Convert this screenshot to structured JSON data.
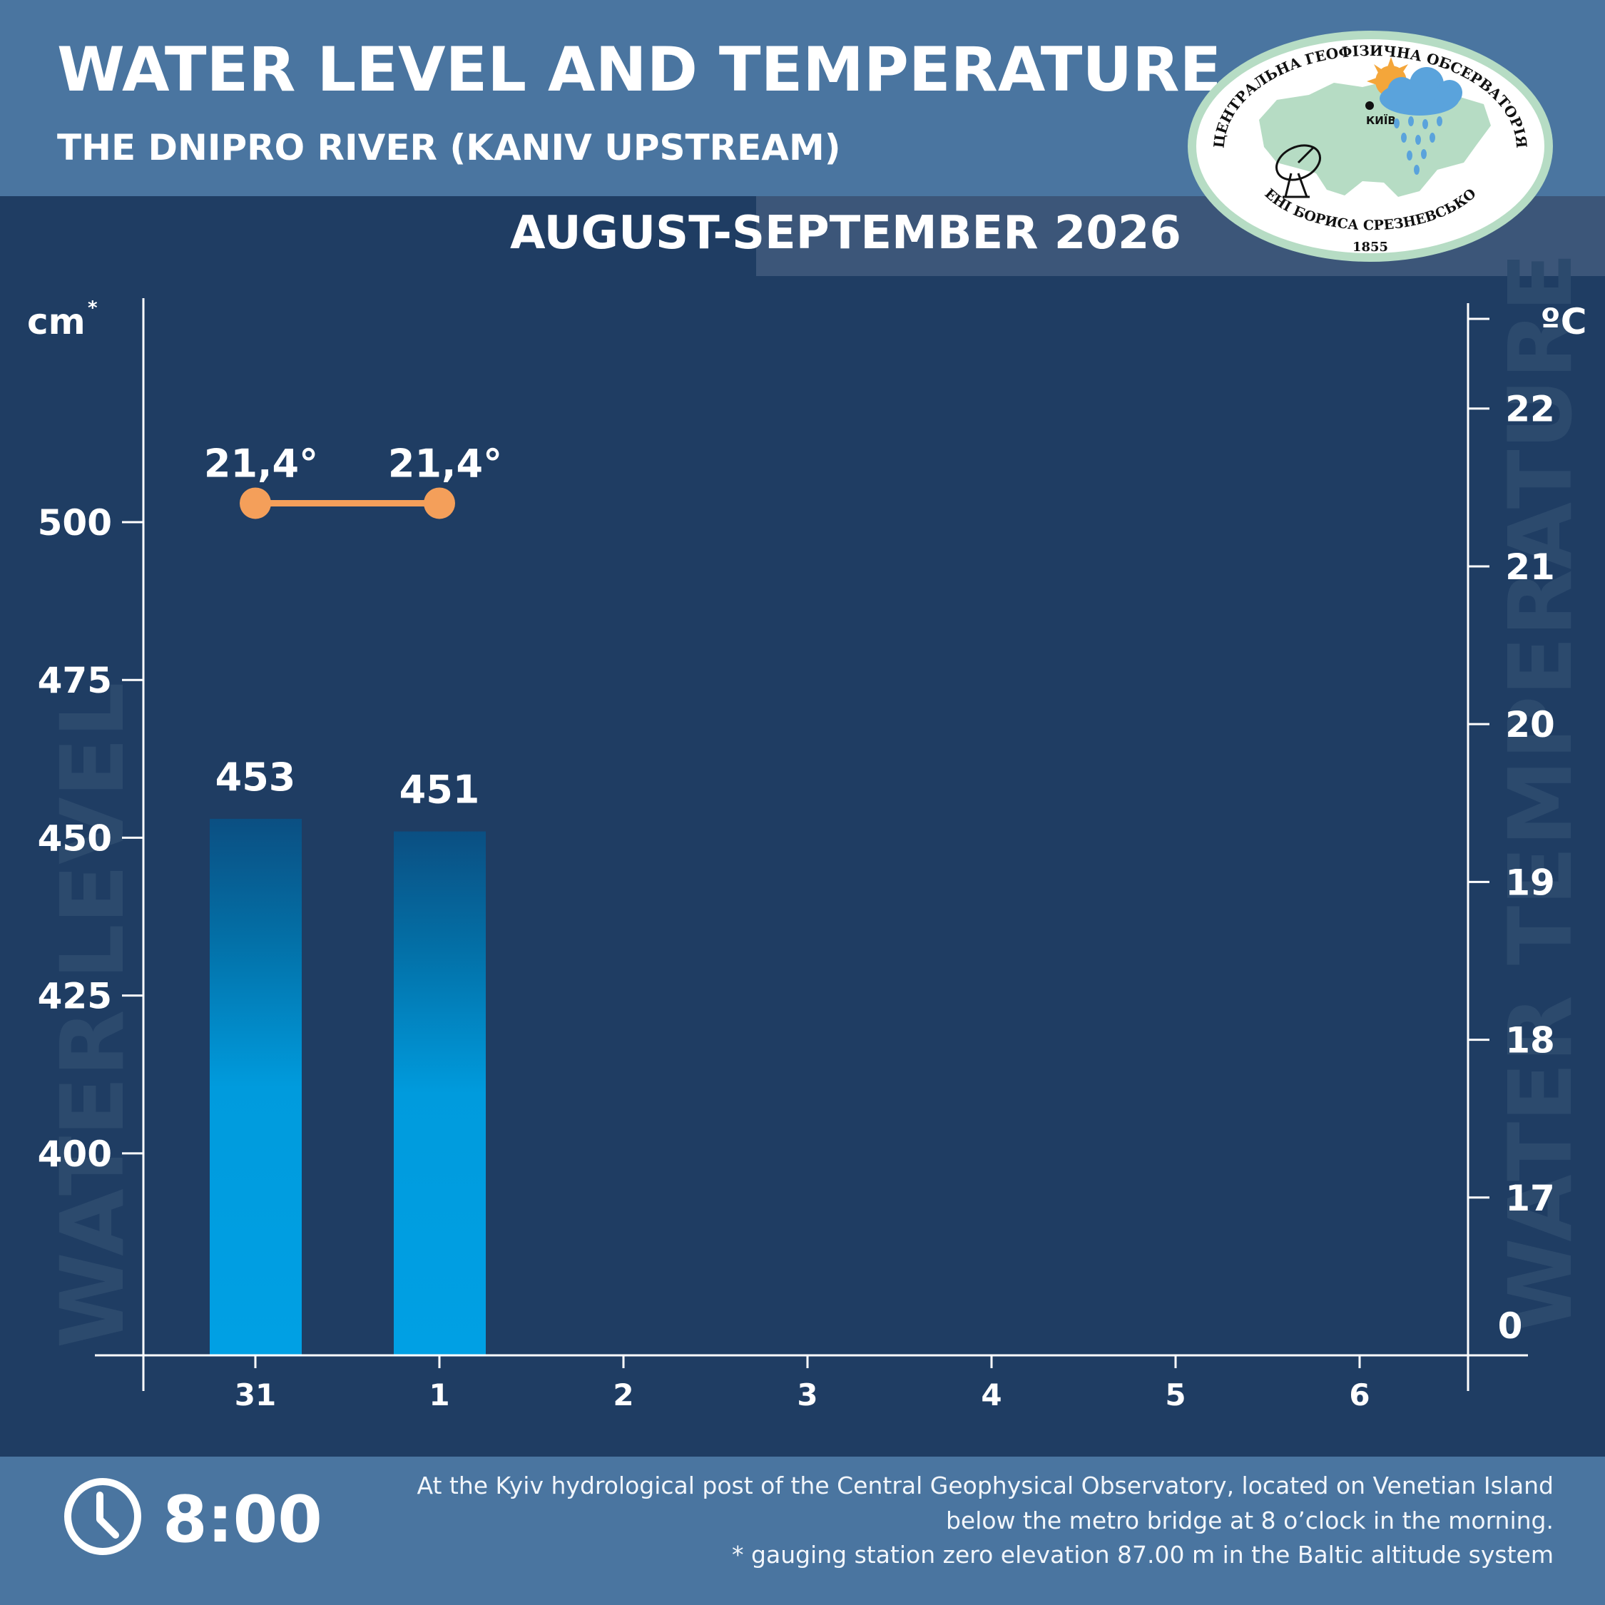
{
  "header": {
    "title": "WATER LEVEL AND TEMPERATURE",
    "subtitle": "THE DNIPRO RIVER (KANIV UPSTREAM)",
    "period": "AUGUST-SEPTEMBER 2026"
  },
  "logo": {
    "top_text": "ЦЕНТРАЛЬНА ГЕОФІЗИЧНА ОБСЕРВАТОРІЯ",
    "bottom_text": "ІМЕНІ БОРИСА СРЕЗНЕВСЬКОГО",
    "year": "1855",
    "city": "КИЇВ",
    "colors": {
      "map": "#b6dcc4",
      "ring": "#b6dcc4",
      "cloud": "#5aa3dc",
      "sun": "#f4a63a"
    },
    "icons": [
      "ukraine-map-icon",
      "sun-icon",
      "rain-cloud-icon",
      "satellite-dish-icon"
    ]
  },
  "footer": {
    "time": "8:00",
    "note_line1": "At the Kyiv hydrological post of the Central Geophysical Observatory, located on Venetian Island",
    "note_line2": "below the metro bridge  at 8 o’clock in the morning.",
    "note_line3": "* gauging station zero elevation 87.00 m in the Baltic altitude system",
    "icon": "clock-icon"
  },
  "chart_data": {
    "type": "bar",
    "categories": [
      "31",
      "1",
      "2",
      "3",
      "4",
      "5",
      "6"
    ],
    "series": [
      {
        "type": "bar",
        "values": [
          453,
          451,
          null,
          null,
          null,
          null,
          null
        ],
        "labels": [
          "453",
          "451"
        ]
      },
      {
        "type": "line",
        "values": [
          21.4,
          21.4,
          null,
          null,
          null,
          null,
          null
        ],
        "labels": [
          "21,4°",
          "21,4°"
        ]
      }
    ],
    "left_axis": {
      "unit": "cm",
      "unit_mark": "*",
      "watermark": "WATER LEVEL",
      "ticks": [
        400,
        425,
        450,
        475,
        500
      ],
      "tick_labels": [
        "400",
        "425",
        "450",
        "475",
        "500"
      ],
      "range": [
        368,
        533
      ]
    },
    "right_axis": {
      "unit": "ºC",
      "watermark": "WATER TEMPERATURE",
      "ticks": [
        17,
        18,
        19,
        20,
        21,
        22
      ],
      "tick_labels": [
        "17",
        "18",
        "19",
        "20",
        "21",
        "22"
      ],
      "bottom_label": "0",
      "range": [
        16.0,
        22.6
      ]
    },
    "colors": {
      "bar_top": "#0b4f82",
      "bar_bottom": "#00a0e4",
      "line": "#f49f5a",
      "axis": "#ffffff",
      "watermark": "#2c4a6d"
    }
  }
}
